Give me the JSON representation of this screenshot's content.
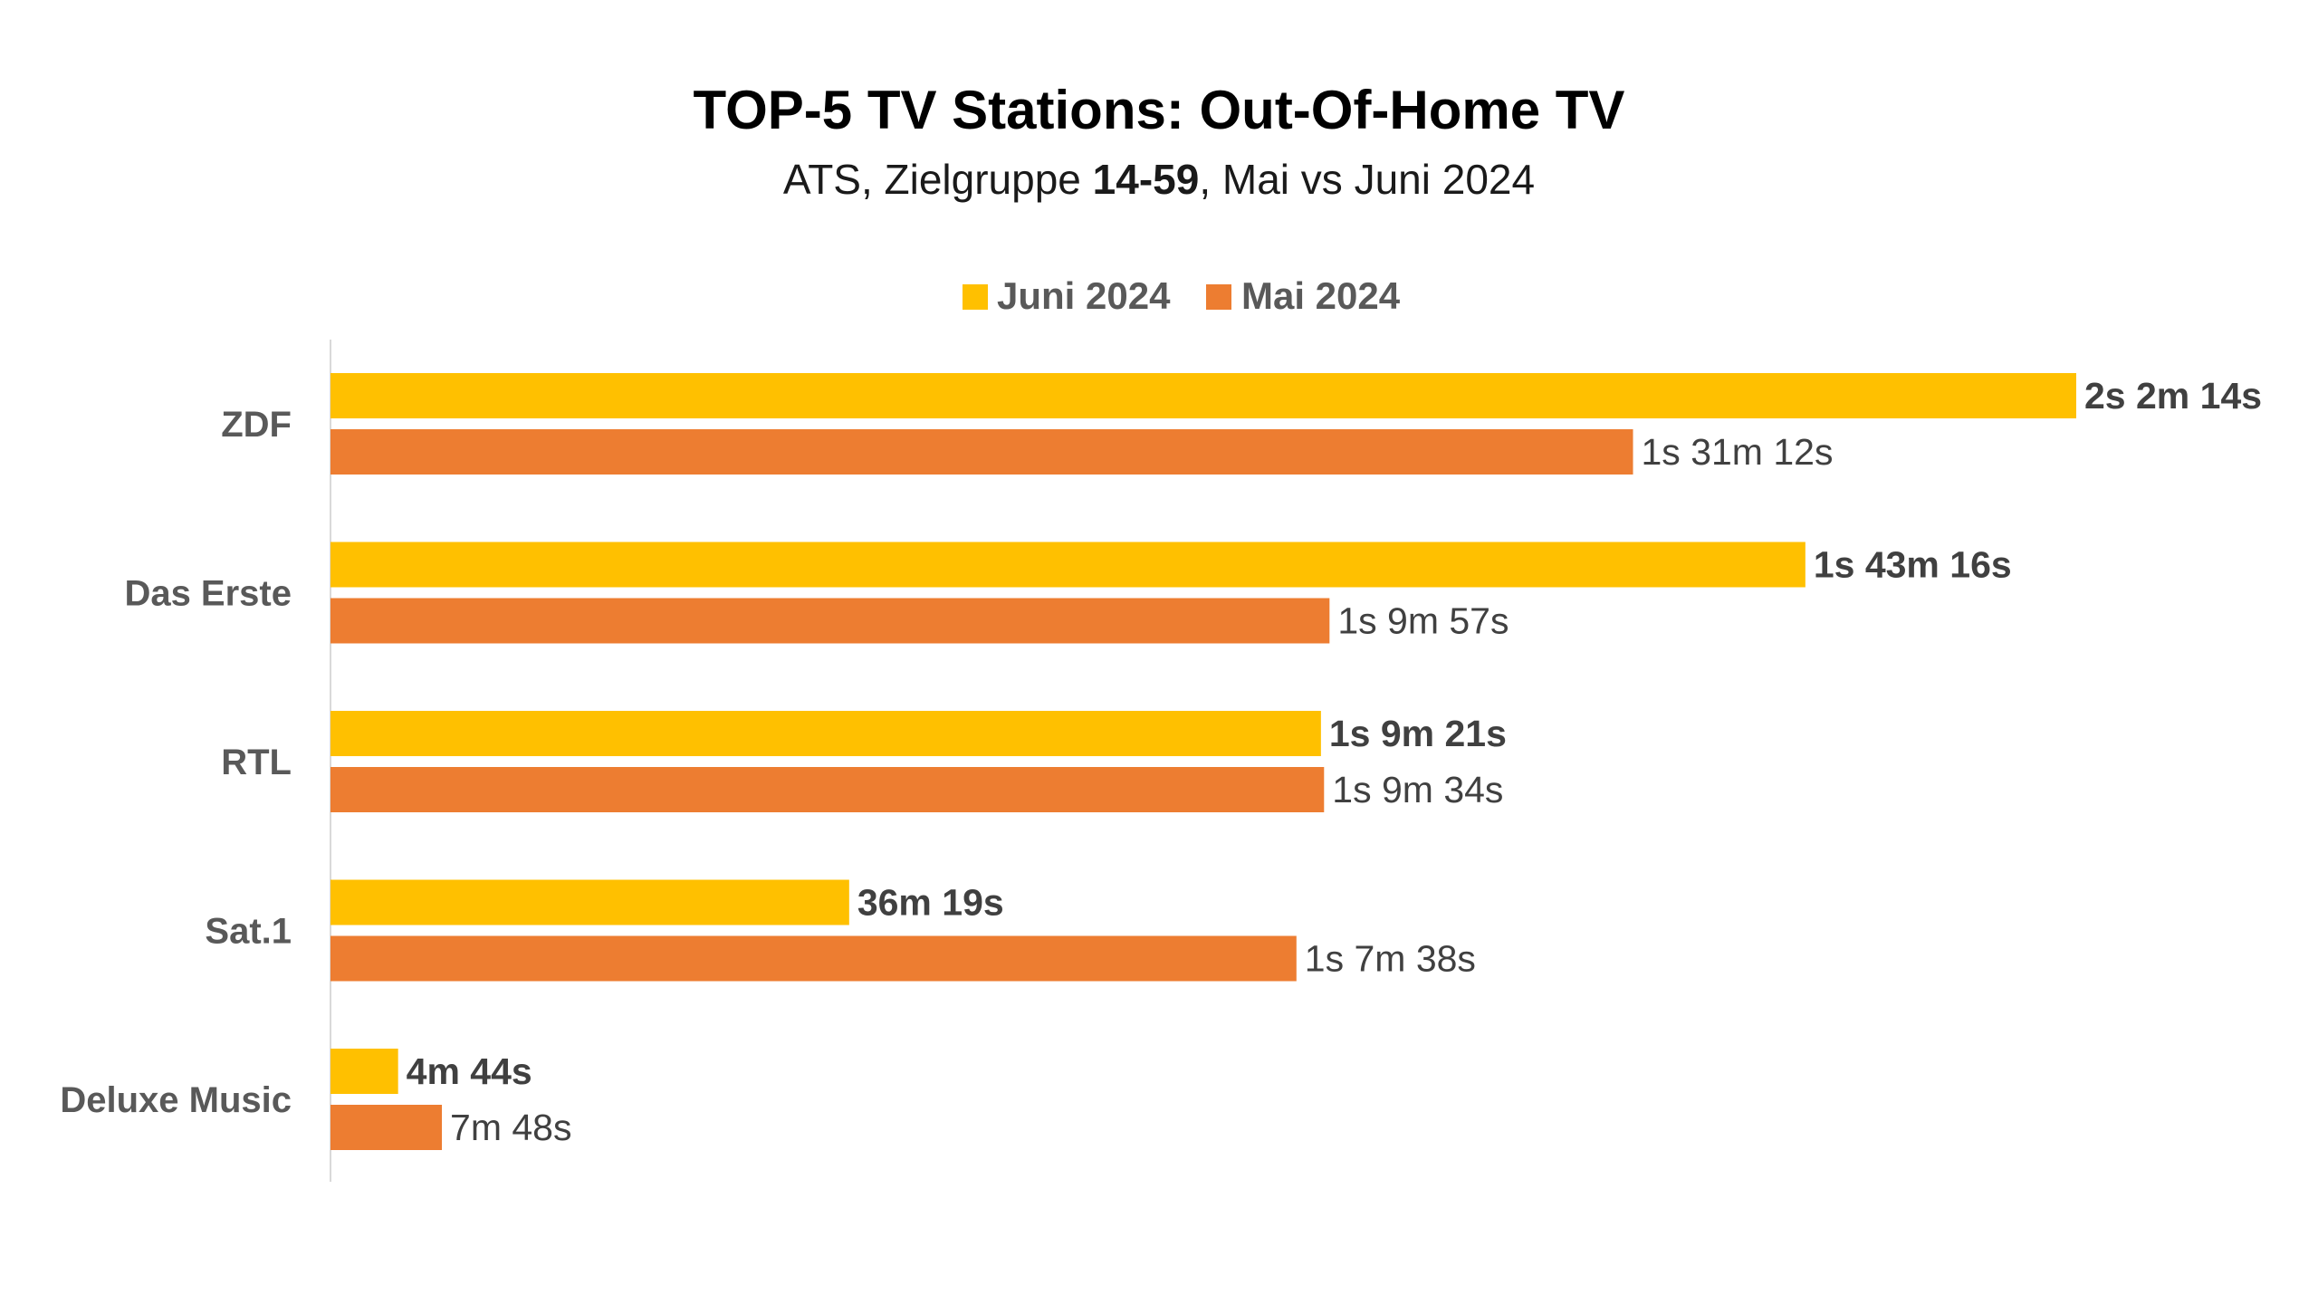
{
  "chart_data": {
    "type": "bar",
    "orientation": "horizontal",
    "title": "TOP-5 TV Stations: Out-Of-Home TV",
    "subtitle_parts": [
      {
        "text": "ATS, Zielgruppe ",
        "bold": false
      },
      {
        "text": "14-59",
        "bold": true
      },
      {
        "text": ", Mai vs Juni 2024",
        "bold": false
      }
    ],
    "categories": [
      "ZDF",
      "Das Erste",
      "RTL",
      "Sat.1",
      "Deluxe Music"
    ],
    "series": [
      {
        "name": "Juni 2024",
        "color": "#FFC000",
        "label_bold": true,
        "values": [
          7334,
          6196,
          4161,
          2179,
          284
        ],
        "labels": [
          "2s 2m 14s",
          "1s 43m 16s",
          "1s 9m 21s",
          "36m 19s",
          "4m 44s"
        ]
      },
      {
        "name": "Mai 2024",
        "color": "#ED7D31",
        "label_bold": false,
        "values": [
          5472,
          4197,
          4174,
          4058,
          468
        ],
        "labels": [
          "1s 31m 12s",
          "1s 9m 57s",
          "1s 9m 34s",
          "1s 7m 38s",
          "7m 48s"
        ]
      }
    ],
    "legend_position": "top",
    "xlim": [
      0,
      7334
    ],
    "grid": false,
    "axis_line_color": "#D9D9D9"
  }
}
